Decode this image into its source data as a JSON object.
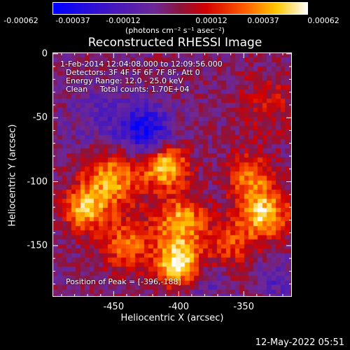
{
  "colorbar": {
    "units": "(photons cm⁻² s⁻¹ asec⁻²)",
    "ticks": [
      "-0.00062",
      "-0.00037",
      "-0.00012",
      "0.00012",
      "0.00037",
      "0.00062"
    ]
  },
  "annotations": {
    "time_range": "1-Feb-2014 12:04:08.000 to 12:09:56.000",
    "detectors": "Detectors: 3F 4F 5F 6F 7F 8F, Att 0",
    "energy": "Energy Range: 12.0 - 25.0 keV",
    "method": "Clean     Total counts: 1.70E+04",
    "peak": "Position of Peak = [-396,-188]"
  },
  "footer": {
    "timestamp": "12-May-2022 05:51"
  },
  "chart_data": {
    "type": "heatmap",
    "title": "Reconstructed RHESSI Image",
    "xlabel": "Heliocentric X (arcsec)",
    "ylabel": "Heliocentric Y (arcsec)",
    "xlim": [
      -497,
      -313
    ],
    "ylim": [
      -190,
      1
    ],
    "x_ticks": [
      -450,
      -400,
      -350
    ],
    "y_ticks": [
      0,
      -50,
      -100,
      -150
    ],
    "colorscale_range": [
      -0.00062,
      0.00062
    ],
    "sources": [
      {
        "x": -400,
        "y": -165,
        "sigma": 12,
        "amp": 1.0
      },
      {
        "x": -398,
        "y": -132,
        "sigma": 14,
        "amp": 0.75
      },
      {
        "x": -410,
        "y": -88,
        "sigma": 12,
        "amp": 0.85
      },
      {
        "x": -452,
        "y": -98,
        "sigma": 16,
        "amp": 0.7
      },
      {
        "x": -472,
        "y": -122,
        "sigma": 12,
        "amp": 0.72
      },
      {
        "x": -440,
        "y": -150,
        "sigma": 14,
        "amp": 0.55
      },
      {
        "x": -335,
        "y": -125,
        "sigma": 14,
        "amp": 0.85
      },
      {
        "x": -345,
        "y": -95,
        "sigma": 12,
        "amp": 0.55
      },
      {
        "x": -360,
        "y": -150,
        "sigma": 12,
        "amp": 0.4
      },
      {
        "x": -425,
        "y": -60,
        "sigma": 14,
        "amp": -0.7
      },
      {
        "x": -460,
        "y": -50,
        "sigma": 18,
        "amp": -0.25
      },
      {
        "x": -330,
        "y": -40,
        "sigma": 18,
        "amp": 0.25
      },
      {
        "x": -380,
        "y": -180,
        "sigma": 10,
        "amp": -0.25
      },
      {
        "x": -325,
        "y": -178,
        "sigma": 10,
        "amp": -0.3
      }
    ],
    "peak": {
      "x": -396,
      "y": -188
    }
  }
}
